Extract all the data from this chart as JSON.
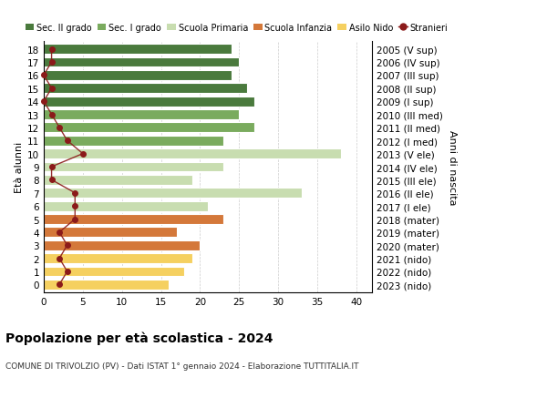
{
  "ages": [
    18,
    17,
    16,
    15,
    14,
    13,
    12,
    11,
    10,
    9,
    8,
    7,
    6,
    5,
    4,
    3,
    2,
    1,
    0
  ],
  "right_labels": [
    "2005 (V sup)",
    "2006 (IV sup)",
    "2007 (III sup)",
    "2008 (II sup)",
    "2009 (I sup)",
    "2010 (III med)",
    "2011 (II med)",
    "2012 (I med)",
    "2013 (V ele)",
    "2014 (IV ele)",
    "2015 (III ele)",
    "2016 (II ele)",
    "2017 (I ele)",
    "2018 (mater)",
    "2019 (mater)",
    "2020 (mater)",
    "2021 (nido)",
    "2022 (nido)",
    "2023 (nido)"
  ],
  "bar_values": [
    24,
    25,
    24,
    26,
    27,
    25,
    27,
    23,
    38,
    23,
    19,
    33,
    21,
    23,
    17,
    20,
    19,
    18,
    16
  ],
  "bar_colors": [
    "#4a7a3d",
    "#4a7a3d",
    "#4a7a3d",
    "#4a7a3d",
    "#4a7a3d",
    "#7aab5e",
    "#7aab5e",
    "#7aab5e",
    "#c8ddb0",
    "#c8ddb0",
    "#c8ddb0",
    "#c8ddb0",
    "#c8ddb0",
    "#d4783a",
    "#d4783a",
    "#d4783a",
    "#f5d060",
    "#f5d060",
    "#f5d060"
  ],
  "stranieri_values": [
    1,
    1,
    0,
    1,
    0,
    1,
    2,
    3,
    5,
    1,
    1,
    4,
    4,
    4,
    2,
    3,
    2,
    3,
    2
  ],
  "legend_labels": [
    "Sec. II grado",
    "Sec. I grado",
    "Scuola Primaria",
    "Scuola Infanzia",
    "Asilo Nido",
    "Stranieri"
  ],
  "legend_colors": [
    "#4a7a3d",
    "#7aab5e",
    "#c8ddb0",
    "#d4783a",
    "#f5d060",
    "#8b1a1a"
  ],
  "title": "Popolazione per età scolastica - 2024",
  "subtitle": "COMUNE DI TRIVOLZIO (PV) - Dati ISTAT 1° gennaio 2024 - Elaborazione TUTTITALIA.IT",
  "ylabel_left": "Età alunni",
  "ylabel_right": "Anni di nascita",
  "xlim": [
    0,
    42
  ],
  "xticks": [
    0,
    5,
    10,
    15,
    20,
    25,
    30,
    35,
    40
  ],
  "stranieri_color": "#8b1a1a",
  "bar_height": 0.75,
  "background_color": "#ffffff",
  "grid_color": "#cccccc"
}
